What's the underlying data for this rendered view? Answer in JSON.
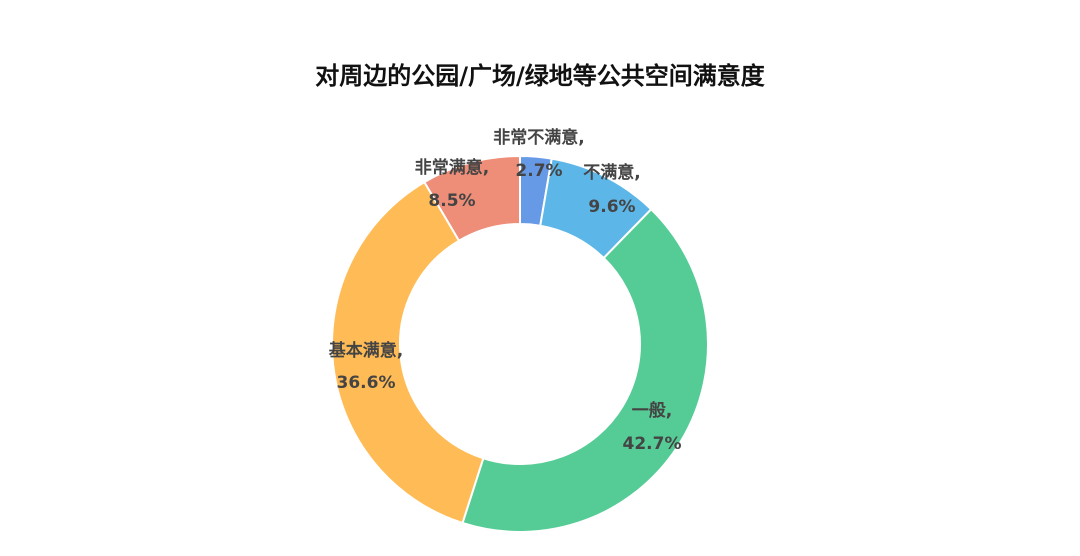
{
  "chart_data": {
    "type": "pie",
    "variant": "donut",
    "title": "对周边的公园/广场/绿地等公共空间满意度",
    "categories": [
      "非常不满意",
      "不满意",
      "一般",
      "基本满意",
      "非常满意"
    ],
    "values": [
      2.7,
      9.6,
      42.7,
      36.6,
      8.5
    ],
    "value_labels": [
      "2.7%",
      "9.6%",
      "42.7%",
      "36.6%",
      "8.5%"
    ],
    "label_separator": ",",
    "colors": [
      "#6699E6",
      "#5DB6E8",
      "#55CC96",
      "#FFBB55",
      "#EE8E78"
    ],
    "start_angle_deg": 0,
    "direction": "clockwise",
    "legend": "none"
  }
}
